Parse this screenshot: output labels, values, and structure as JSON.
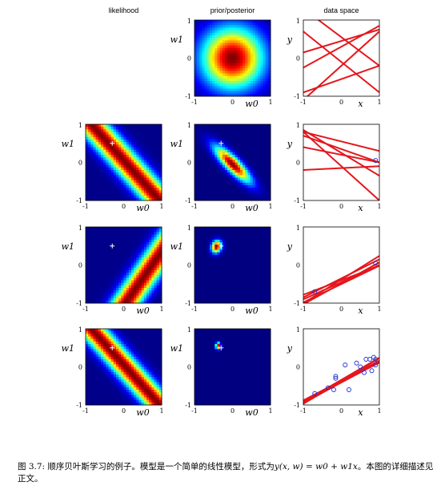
{
  "columns": [
    "likelihood",
    "prior/posterior",
    "data space"
  ],
  "axes": {
    "param_x": "w0",
    "param_y": "w1",
    "data_x": "x",
    "data_y": "y",
    "ticks": [
      "-1",
      "0",
      "1"
    ]
  },
  "caption": {
    "prefix": "图 3.7: 顺序贝叶斯学习的例子。模型是一个简单的线性模型，形式为",
    "formula": "y(x, w) = w0 + w1x",
    "suffix": "。本图的详细描述见正文。"
  },
  "rows": [
    {
      "likelihood": null,
      "prior": {
        "cx": 0.0,
        "cy": 0.0,
        "sx": 0.55,
        "sy": 0.55,
        "rho": 0.0
      },
      "data_lines": [
        [
          -0.2,
          0.9
        ],
        [
          0.55,
          -0.75
        ],
        [
          0.3,
          0.55
        ],
        [
          -0.1,
          -0.8
        ],
        [
          0.45,
          0.3
        ],
        [
          -0.55,
          0.35
        ]
      ],
      "points": [],
      "true_param": null
    },
    {
      "likelihood": {
        "a": 1.0,
        "b": 0.9,
        "c": 0.05,
        "width": 0.22
      },
      "prior": {
        "cx": 0.0,
        "cy": -0.05,
        "sx": 0.32,
        "sy": 0.32,
        "rho": -0.85
      },
      "data_lines": [
        [
          0.35,
          -0.35
        ],
        [
          0.55,
          -0.25
        ],
        [
          0.2,
          -0.2
        ],
        [
          -0.15,
          0.05
        ],
        [
          0.25,
          -0.6
        ],
        [
          -0.1,
          -0.9
        ]
      ],
      "points": [
        [
          0.9,
          0.05
        ]
      ],
      "true_param": [
        -0.3,
        0.5
      ]
    },
    {
      "likelihood": {
        "a": 1.0,
        "b": -0.7,
        "c": 0.75,
        "width": 0.22
      },
      "prior": {
        "cx": -0.42,
        "cy": 0.48,
        "sx": 0.09,
        "sy": 0.11,
        "rho": 0.15
      },
      "data_lines": [
        [
          -0.45,
          0.45
        ],
        [
          -0.35,
          0.5
        ],
        [
          -0.48,
          0.55
        ],
        [
          -0.4,
          0.38
        ],
        [
          -0.38,
          0.62
        ],
        [
          -0.5,
          0.48
        ]
      ],
      "points": [
        [
          0.9,
          0.05
        ],
        [
          -0.7,
          -0.7
        ]
      ],
      "true_param": [
        -0.3,
        0.5
      ]
    },
    {
      "likelihood": {
        "a": 1.0,
        "b": 0.9,
        "c": 0.05,
        "width": 0.2
      },
      "prior": {
        "cx": -0.38,
        "cy": 0.55,
        "sx": 0.04,
        "sy": 0.06,
        "rho": 0.0
      },
      "data_lines": [
        [
          -0.36,
          0.52
        ],
        [
          -0.4,
          0.56
        ],
        [
          -0.34,
          0.58
        ],
        [
          -0.39,
          0.5
        ],
        [
          -0.37,
          0.6
        ],
        [
          -0.41,
          0.53
        ]
      ],
      "points": [
        [
          0.9,
          0.05
        ],
        [
          -0.7,
          -0.7
        ],
        [
          0.75,
          0.2
        ],
        [
          0.85,
          0.25
        ],
        [
          -0.15,
          -0.25
        ],
        [
          0.5,
          0.0
        ],
        [
          0.6,
          -0.15
        ],
        [
          -0.2,
          -0.6
        ],
        [
          0.2,
          -0.6
        ],
        [
          -0.35,
          -0.55
        ],
        [
          0.9,
          0.2
        ],
        [
          0.4,
          0.1
        ],
        [
          -0.15,
          -0.3
        ],
        [
          0.8,
          -0.1
        ],
        [
          0.65,
          0.2
        ],
        [
          0.1,
          0.05
        ]
      ],
      "true_param": [
        -0.3,
        0.5
      ]
    }
  ]
}
